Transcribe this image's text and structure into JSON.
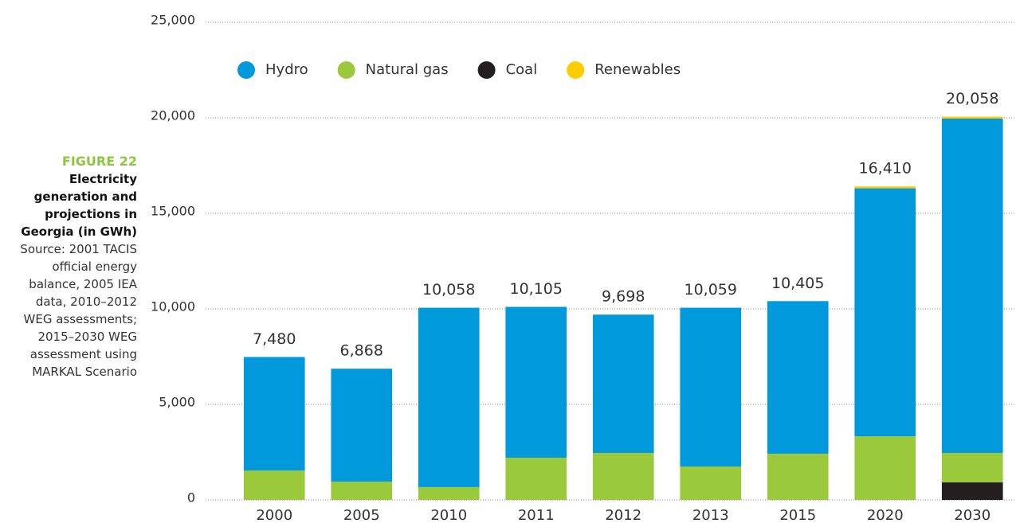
{
  "chart_data": {
    "type": "stacked_bar",
    "figure_label": "FIGURE 22",
    "title": "Electricity generation and projections in Georgia (in GWh)",
    "source": "Source: 2001 TACIS official energy balance, 2005 IEA data, 2010–2012 WEG assessments; 2015–2030 WEG assessment using MARKAL Scenario",
    "categories": [
      "2000",
      "2005",
      "2010",
      "2011",
      "2012",
      "2013",
      "2015",
      "2020",
      "2030"
    ],
    "series": [
      {
        "name": "Hydro",
        "color": "#0099dc",
        "values": [
          5940,
          5908,
          9388,
          7895,
          7238,
          8309,
          7985,
          12980,
          17498
        ]
      },
      {
        "name": "Natural gas",
        "color": "#9aca3c",
        "values": [
          1540,
          960,
          670,
          2210,
          2460,
          1750,
          2420,
          3330,
          1540
        ]
      },
      {
        "name": "Coal",
        "color": "#231f20",
        "values": [
          0,
          0,
          0,
          0,
          0,
          0,
          0,
          0,
          920
        ]
      },
      {
        "name": "Renewables",
        "color": "#ffcc00",
        "values": [
          0,
          0,
          0,
          0,
          0,
          0,
          0,
          100,
          100
        ]
      }
    ],
    "totals": [
      7480,
      6868,
      10058,
      10105,
      9698,
      10059,
      10405,
      16410,
      20058
    ],
    "total_labels": [
      "7,480",
      "6,868",
      "10,058",
      "10,105",
      "9,698",
      "10,059",
      "10,405",
      "16,410",
      "20,058"
    ],
    "ylim": [
      0,
      25000
    ],
    "yticks": [
      0,
      {
        "value": 5000,
        "label": "5,000"
      },
      {
        "value": 10000,
        "label": "10,000"
      },
      {
        "value": 15000,
        "label": "15,000"
      },
      {
        "value": 20000,
        "label": "20,000"
      },
      {
        "value": 25000,
        "label": "25,000"
      }
    ],
    "grid": true,
    "legend": "top"
  }
}
